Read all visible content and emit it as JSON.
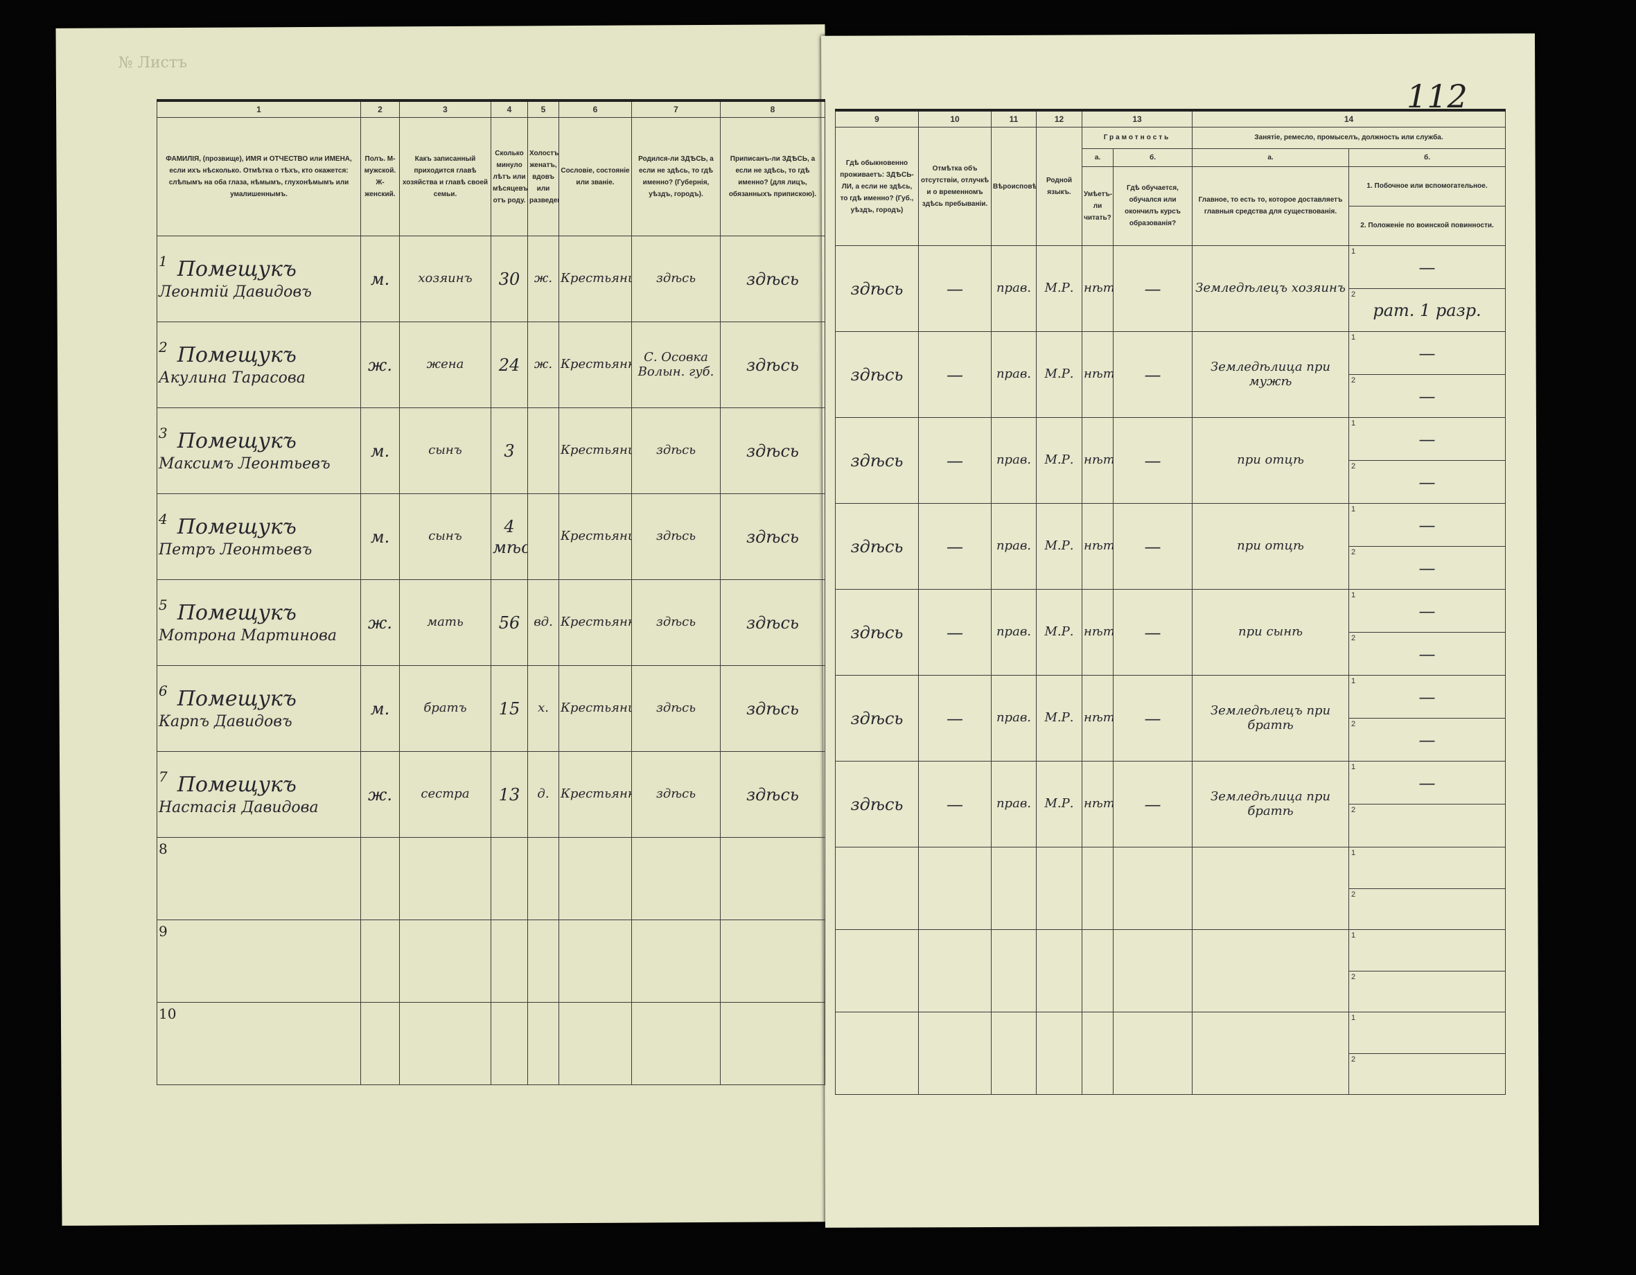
{
  "document": {
    "top_left_label": "№ Листъ",
    "page_number": "112"
  },
  "left_columns": {
    "numbers": [
      "1",
      "2",
      "3",
      "4",
      "5",
      "6",
      "7",
      "8"
    ],
    "headers": [
      "ФАМИЛІЯ, (прозвище), ИМЯ и ОТЧЕСТВО или ИМЕНА, если ихъ нѣсколько. Отмѣтка о тѣхъ, кто окажется: слѣпымъ на оба глаза, нѣмымъ, глухонѣмымъ или умалишеннымъ.",
      "Полъ. М-мужской. Ж-женский.",
      "Какъ записанный приходится главѣ хозяйства и главѣ своей семьи.",
      "Сколько минуло лѣтъ или мѣсяцевъ отъ роду.",
      "Холостъ, женатъ, вдовъ или разведенъ.",
      "Сословіе, состояніе или званіе.",
      "Родился-ли ЗДѢСЬ, а если не здѣсь, то гдѣ именно? (Губернія, уѣздъ, городъ).",
      "Приписанъ-ли ЗДѢСЬ, а если не здѣсь, то гдѣ именно? (для лицъ, обязанныхъ припискою)."
    ]
  },
  "right_columns": {
    "numbers": [
      "9",
      "10",
      "11",
      "12",
      "13",
      "14"
    ],
    "headers": [
      "Гдѣ обыкновенно проживаетъ: ЗДѢСЬ-ЛИ, а если не здѣсь, то гдѣ именно? (Губ., уѣздъ, городъ)",
      "Отмѣтка объ отсутствіи, отлучкѣ и о временномъ здѣсь пребываніи.",
      "Вѣроисповѣданіе.",
      "Родной языкъ.",
      "Грамотность",
      "Умѣетъ-ли читать?",
      "Гдѣ обучается, обучался или окончилъ курсъ образованія?",
      "Занятіе, ремесло, промыселъ, должность или служба.",
      "Главное, то есть то, которое доставляетъ главныя средства для существованія.",
      "1. Побочное или вспомогательное.",
      "2. Положеніе по воинской повинности."
    ],
    "sub_a": "а.",
    "sub_b": "б."
  },
  "rows": [
    {
      "num": "1",
      "surname": "Помещукъ",
      "name": "Леонтій Давидовъ",
      "sex": "м.",
      "relation": "хозяинъ",
      "age": "30",
      "marital": "ж.",
      "estate": "Крестьянинъ",
      "born": "здѣсь",
      "registered": "здѣсь",
      "residence": "здѣсь",
      "absence": "—",
      "religion": "прав.",
      "language": "М.Р.",
      "literate": "нѣтъ",
      "education": "—",
      "occupation": "Земледѣлецъ хозяинъ",
      "aux1": "—",
      "aux2": "рат. 1 разр."
    },
    {
      "num": "2",
      "surname": "Помещукъ",
      "name": "Акулина Тарасова",
      "sex": "ж.",
      "relation": "жена",
      "age": "24",
      "marital": "ж.",
      "estate": "Крестьянка",
      "born": "С. Осовка Волын. губ.",
      "registered": "здѣсь",
      "residence": "здѣсь",
      "absence": "—",
      "religion": "прав.",
      "language": "М.Р.",
      "literate": "нѣтъ",
      "education": "—",
      "occupation": "Земледѣлица при мужѣ",
      "aux1": "—",
      "aux2": "—"
    },
    {
      "num": "3",
      "surname": "Помещукъ",
      "name": "Максимъ Леонтьевъ",
      "sex": "м.",
      "relation": "сынъ",
      "age": "3",
      "marital": "",
      "estate": "Крестьянинъ",
      "born": "здѣсь",
      "registered": "здѣсь",
      "residence": "здѣсь",
      "absence": "—",
      "religion": "прав.",
      "language": "М.Р.",
      "literate": "нѣтъ",
      "education": "—",
      "occupation": "при отцѣ",
      "aux1": "—",
      "aux2": "—"
    },
    {
      "num": "4",
      "surname": "Помещукъ",
      "name": "Петръ Леонтьевъ",
      "sex": "м.",
      "relation": "сынъ",
      "age": "4 мѣс.",
      "marital": "",
      "estate": "Крестьянинъ",
      "born": "здѣсь",
      "registered": "здѣсь",
      "residence": "здѣсь",
      "absence": "—",
      "religion": "прав.",
      "language": "М.Р.",
      "literate": "нѣтъ",
      "education": "—",
      "occupation": "при отцѣ",
      "aux1": "—",
      "aux2": "—"
    },
    {
      "num": "5",
      "surname": "Помещукъ",
      "name": "Мотрона Мартинова",
      "sex": "ж.",
      "relation": "мать",
      "age": "56",
      "marital": "вд.",
      "estate": "Крестьянка",
      "born": "здѣсь",
      "registered": "здѣсь",
      "residence": "здѣсь",
      "absence": "—",
      "religion": "прав.",
      "language": "М.Р.",
      "literate": "нѣтъ",
      "education": "—",
      "occupation": "при сынѣ",
      "aux1": "—",
      "aux2": "—"
    },
    {
      "num": "6",
      "surname": "Помещукъ",
      "name": "Карпъ Давидовъ",
      "sex": "м.",
      "relation": "братъ",
      "age": "15",
      "marital": "х.",
      "estate": "Крестьянинъ",
      "born": "здѣсь",
      "registered": "здѣсь",
      "residence": "здѣсь",
      "absence": "—",
      "religion": "прав.",
      "language": "М.Р.",
      "literate": "нѣтъ",
      "education": "—",
      "occupation": "Земледѣлецъ при братѣ",
      "aux1": "—",
      "aux2": "—"
    },
    {
      "num": "7",
      "surname": "Помещукъ",
      "name": "Настасія Давидова",
      "sex": "ж.",
      "relation": "сестра",
      "age": "13",
      "marital": "д.",
      "estate": "Крестьянка",
      "born": "здѣсь",
      "registered": "здѣсь",
      "residence": "здѣсь",
      "absence": "—",
      "religion": "прав.",
      "language": "М.Р.",
      "literate": "нѣтъ",
      "education": "—",
      "occupation": "Земледѣлица при братѣ",
      "aux1": "—",
      "aux2": ""
    }
  ],
  "empty_rows": [
    "8",
    "9",
    "10"
  ],
  "colors": {
    "paper": "#e6e6c9",
    "ink": "#26262e",
    "background": "#050505"
  }
}
